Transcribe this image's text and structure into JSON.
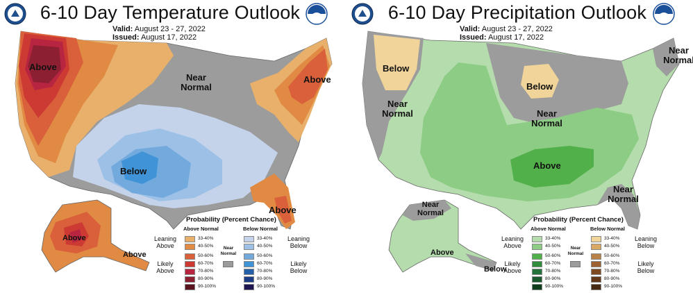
{
  "temperature": {
    "title": "6-10 Day Temperature Outlook",
    "valid_label": "Valid:",
    "valid_value": "August 23 - 27, 2022",
    "issued_label": "Issued:",
    "issued_value": "August 17, 2022",
    "map_labels": {
      "above_west": "Above",
      "near_normal": "Near Normal",
      "above_northeast": "Above",
      "below_south": "Below",
      "above_florida": "Above",
      "above_alaska": "Above",
      "above_alaska_se": "Above"
    },
    "legend": {
      "title": "Probability (Percent Chance)",
      "col_left": "Above Normal",
      "col_right": "Below Normal",
      "leaning_left": "Leaning Above",
      "likely_left": "Likely Above",
      "leaning_right": "Leaning Below",
      "likely_right": "Likely Below",
      "near_normal": "Near Normal",
      "ranges": [
        "33-40%",
        "40-50%",
        "50-60%",
        "60-70%",
        "70-80%",
        "80-90%",
        "90-100%"
      ],
      "left_colors": [
        "#e8b06a",
        "#e08a44",
        "#d9603a",
        "#cc3a33",
        "#b82540",
        "#8c2032",
        "#5a1420"
      ],
      "right_colors": [
        "#c4d3ea",
        "#9dc0e6",
        "#73aade",
        "#3f93d6",
        "#2461a8",
        "#1c3c86",
        "#1d1650"
      ]
    }
  },
  "precipitation": {
    "title": "6-10 Day Precipitation Outlook",
    "valid_label": "Valid:",
    "valid_value": "August 23 - 27, 2022",
    "issued_label": "Issued:",
    "issued_value": "August 17, 2022",
    "map_labels": {
      "below_northwest": "Below",
      "near_normal_west": "Near Normal",
      "below_midwest": "Below",
      "near_normal_midwest": "Near Normal",
      "near_normal_northeast": "Near Normal",
      "above_south": "Above",
      "near_normal_southeast": "Near Normal",
      "near_normal_alaska": "Near Normal",
      "above_alaska": "Above",
      "below_alaska": "Below"
    },
    "legend": {
      "title": "Probability (Percent Chance)",
      "col_left": "Above Normal",
      "col_right": "Below Normal",
      "leaning_left": "Leaning Above",
      "likely_left": "Likely Above",
      "leaning_right": "Leaning Below",
      "likely_right": "Likely Below",
      "near_normal": "Near Normal",
      "ranges": [
        "33-40%",
        "40-50%",
        "50-60%",
        "60-70%",
        "70-80%",
        "80-90%",
        "90-100%"
      ],
      "left_colors": [
        "#b4dcac",
        "#8ccc84",
        "#52b04a",
        "#2f8d3c",
        "#24733a",
        "#1a5a2c",
        "#0f3e1c"
      ],
      "right_colors": [
        "#f0d49a",
        "#d9a864",
        "#b98048",
        "#9c6232",
        "#7e4a22",
        "#633818",
        "#472a12"
      ]
    }
  },
  "colors": {
    "near_normal_gray": "#9c9c9c",
    "border_gray": "#777777"
  },
  "icons": {
    "left_seal": "doc-seal-icon",
    "right_seal": "noaa-logo-icon"
  }
}
